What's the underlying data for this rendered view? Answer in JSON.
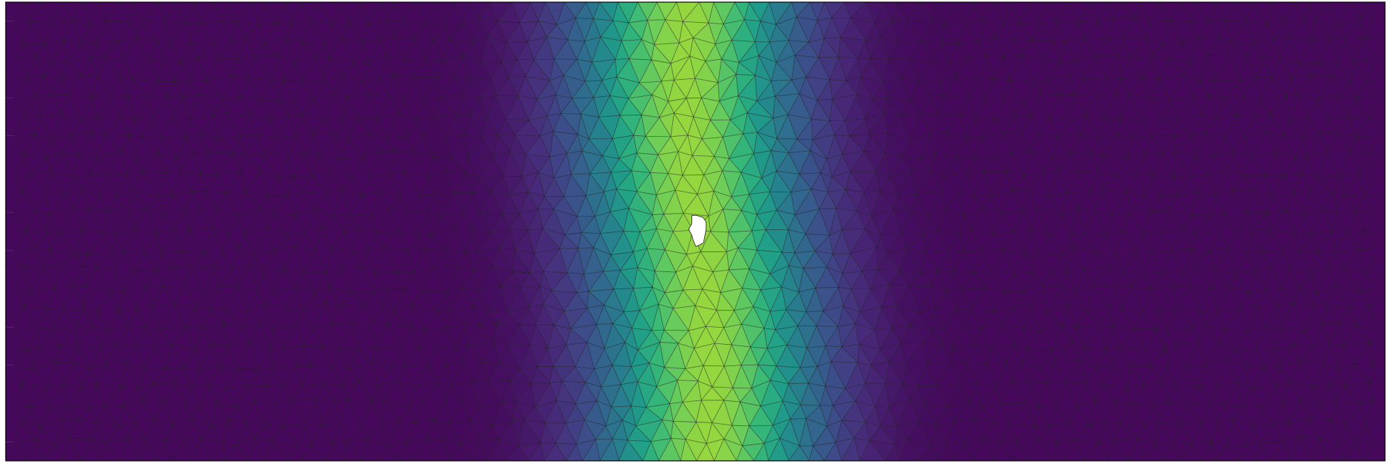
{
  "figure": {
    "kind": "finite-element-mesh-field",
    "colormap": "viridis",
    "colormap_stops": [
      "#440154",
      "#482878",
      "#3e4a89",
      "#31688e",
      "#26828e",
      "#1f9e89",
      "#35b779",
      "#6ece58",
      "#b5de2b",
      "#fde725"
    ],
    "mesh_line_color": "#1a1a1a",
    "hole_color": "#ffffff",
    "frame_color": "#000000",
    "field_shape": "vertical band peaked at centre, decaying toward left and right edges",
    "peak_value_fraction": 0.82,
    "has_central_hole": true
  }
}
